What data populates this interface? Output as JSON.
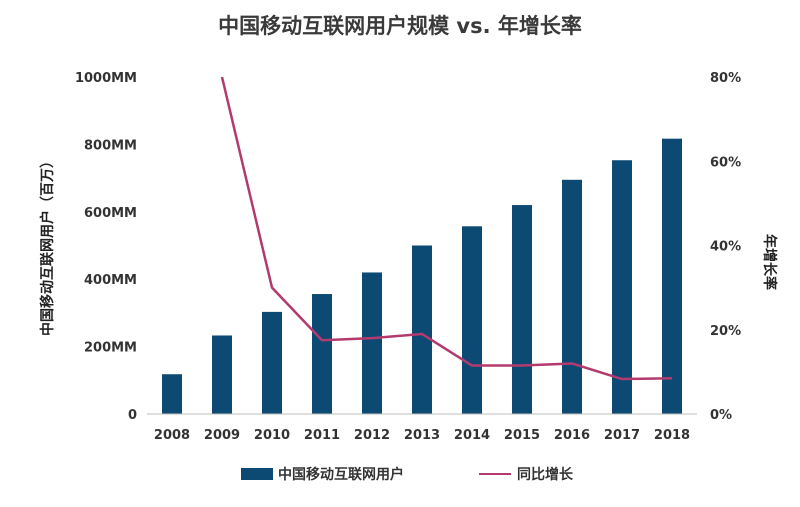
{
  "chart_data": {
    "type": "bar",
    "title": "中国移动互联网用户规模 vs. 年增长率",
    "categories": [
      "2008",
      "2009",
      "2010",
      "2011",
      "2012",
      "2013",
      "2014",
      "2015",
      "2016",
      "2017",
      "2018"
    ],
    "series": [
      {
        "name": "中国移动互联网用户",
        "type": "bar",
        "axis": "left",
        "values": [
          118,
          233,
          303,
          356,
          420,
          500,
          557,
          620,
          695,
          753,
          817
        ]
      },
      {
        "name": "同比增长",
        "type": "line",
        "axis": "right",
        "values": [
          null,
          0.8,
          0.3,
          0.175,
          0.18,
          0.19,
          0.115,
          0.115,
          0.12,
          0.083,
          0.085
        ],
        "clip_top": true
      }
    ],
    "ylabel": "中国移动互联网用户（百万）",
    "ylabel_right": "年增长率",
    "ylim": [
      0,
      1000
    ],
    "ylim_right": [
      0,
      0.8
    ],
    "yticks": [
      "0",
      "200MM",
      "400MM",
      "600MM",
      "800MM",
      "1000MM"
    ],
    "yticks_right": [
      "0%",
      "20%",
      "40%",
      "60%",
      "80%"
    ],
    "legend_position": "bottom",
    "grid": false
  },
  "colors": {
    "bar": "#0d4a73",
    "line": "#b33a6e",
    "axis": "#bfbfbf"
  }
}
